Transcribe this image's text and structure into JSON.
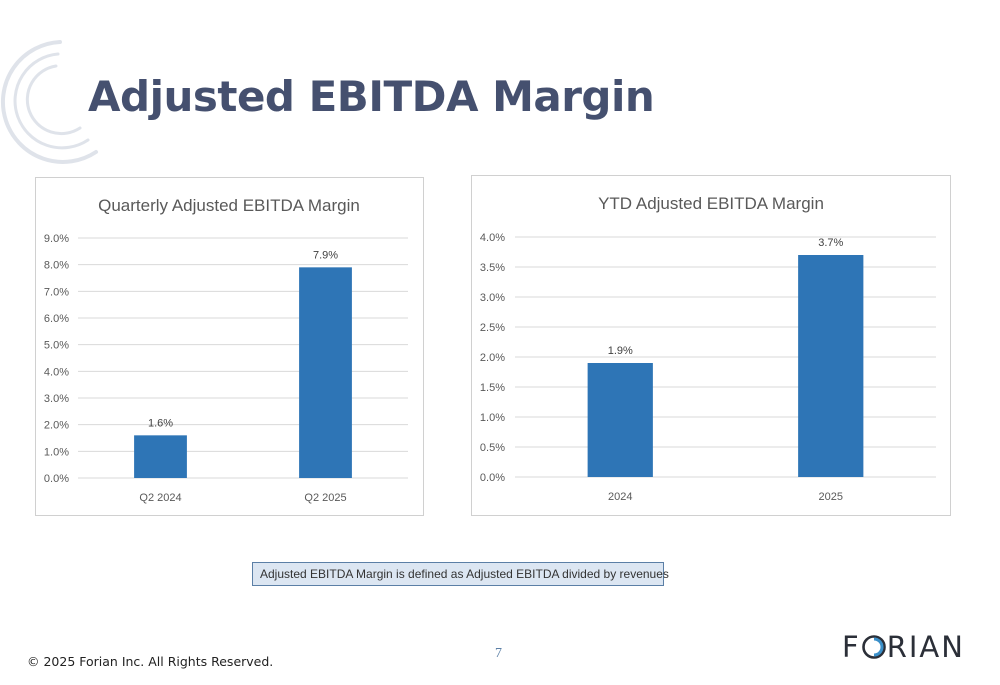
{
  "slide": {
    "title": "Adjusted EBITDA Margin",
    "note": "Adjusted EBITDA Margin is defined as Adjusted EBITDA divided by revenues",
    "footer": "© 2025 Forian Inc.  All Rights Reserved.",
    "page_number": "7",
    "logo_text": {
      "before": "F",
      "after": "RIAN"
    },
    "colors": {
      "title": "#45506f",
      "bar": "#2e75b6",
      "grid": "#d9d9d9",
      "axis_text": "#595959",
      "note_bg": "#dce6f2"
    }
  },
  "chart_data": [
    {
      "type": "bar",
      "title": "Quarterly Adjusted  EBITDA Margin",
      "categories": [
        "Q2 2024",
        "Q2 2025"
      ],
      "values": [
        1.6,
        7.9
      ],
      "data_labels": [
        "1.6%",
        "7.9%"
      ],
      "ylim": [
        0,
        9
      ],
      "yticks": [
        "0.0%",
        "1.0%",
        "2.0%",
        "3.0%",
        "4.0%",
        "5.0%",
        "6.0%",
        "7.0%",
        "8.0%",
        "9.0%"
      ],
      "grid": true,
      "legend": "none"
    },
    {
      "type": "bar",
      "title": "YTD Adjusted EBITDA Margin",
      "categories": [
        "2024",
        "2025"
      ],
      "values": [
        1.9,
        3.7
      ],
      "data_labels": [
        "1.9%",
        "3.7%"
      ],
      "ylim": [
        0,
        4
      ],
      "yticks": [
        "0.0%",
        "0.5%",
        "1.0%",
        "1.5%",
        "2.0%",
        "2.5%",
        "3.0%",
        "3.5%",
        "4.0%"
      ],
      "grid": true,
      "legend": "none"
    }
  ]
}
